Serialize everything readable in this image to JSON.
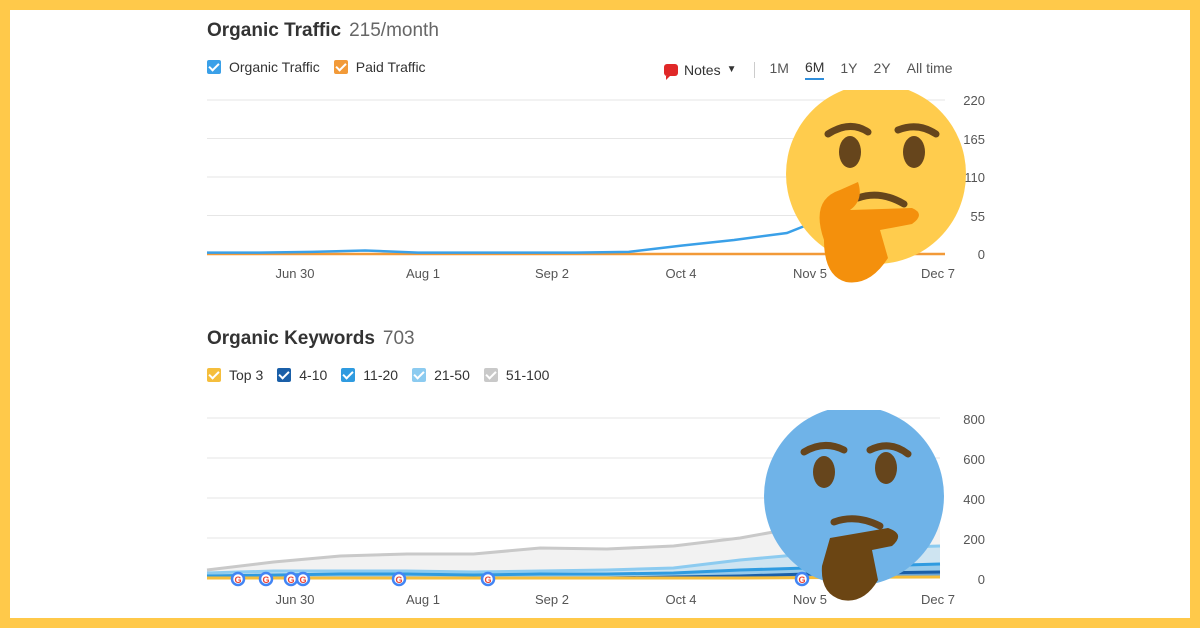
{
  "traffic": {
    "title": "Organic Traffic",
    "value": "215/month",
    "legend": [
      {
        "label": "Organic Traffic",
        "color": "#3aa0e8"
      },
      {
        "label": "Paid Traffic",
        "color": "#f29a38"
      }
    ],
    "notes_label": "Notes",
    "periods": [
      "1M",
      "6M",
      "1Y",
      "2Y",
      "All time"
    ],
    "active_period": "6M",
    "y_ticks": [
      "220",
      "165",
      "110",
      "55",
      "0"
    ],
    "x_ticks": [
      "Jun 30",
      "Aug 1",
      "Sep 2",
      "Oct 4",
      "Nov 5",
      "Dec 7"
    ]
  },
  "keywords": {
    "title": "Organic Keywords",
    "value": "703",
    "legend": [
      {
        "label": "Top 3",
        "color": "#f5be3c"
      },
      {
        "label": "4-10",
        "color": "#1a5fa8"
      },
      {
        "label": "11-20",
        "color": "#2f9be0"
      },
      {
        "label": "21-50",
        "color": "#8ccbf0"
      },
      {
        "label": "51-100",
        "color": "#c9c9c9"
      }
    ],
    "y_ticks": [
      "800",
      "600",
      "400",
      "200",
      "0"
    ],
    "x_ticks": [
      "Jun 30",
      "Aug 1",
      "Sep 2",
      "Oct 4",
      "Nov 5",
      "Dec 7"
    ],
    "google_marker": "G"
  },
  "chart_data": [
    {
      "type": "line",
      "title": "Organic Traffic",
      "ylim": [
        0,
        220
      ],
      "x": [
        "Jun 15",
        "Jun 30",
        "Jul 15",
        "Aug 1",
        "Aug 15",
        "Sep 2",
        "Sep 15",
        "Oct 4",
        "Oct 20",
        "Oct 25",
        "Nov 1",
        "Nov 5",
        "Nov 10",
        "Nov 20",
        "Dec 7"
      ],
      "series": [
        {
          "name": "Organic Traffic",
          "values": [
            2,
            2,
            3,
            5,
            2,
            2,
            2,
            2,
            3,
            12,
            20,
            30,
            60,
            110,
            150
          ]
        },
        {
          "name": "Paid Traffic",
          "values": [
            0,
            0,
            0,
            0,
            0,
            0,
            0,
            0,
            0,
            0,
            0,
            0,
            0,
            0,
            0
          ]
        }
      ]
    },
    {
      "type": "area",
      "title": "Organic Keywords",
      "ylim": [
        0,
        800
      ],
      "x": [
        "Jun 15",
        "Jun 30",
        "Jul 15",
        "Aug 1",
        "Aug 15",
        "Sep 2",
        "Sep 15",
        "Oct 4",
        "Oct 20",
        "Nov 5",
        "Nov 20",
        "Dec 7"
      ],
      "series": [
        {
          "name": "51-100",
          "values": [
            40,
            80,
            110,
            120,
            120,
            150,
            145,
            160,
            200,
            260,
            330,
            380
          ]
        },
        {
          "name": "21-50",
          "values": [
            25,
            35,
            35,
            35,
            30,
            35,
            40,
            50,
            90,
            120,
            150,
            160
          ]
        },
        {
          "name": "11-20",
          "values": [
            10,
            15,
            20,
            20,
            15,
            20,
            20,
            25,
            40,
            50,
            60,
            70
          ]
        },
        {
          "name": "4-10",
          "values": [
            0,
            0,
            0,
            0,
            0,
            0,
            0,
            5,
            10,
            20,
            25,
            30
          ]
        },
        {
          "name": "Top 3",
          "values": [
            0,
            0,
            0,
            0,
            0,
            0,
            0,
            0,
            0,
            2,
            4,
            5
          ]
        }
      ]
    }
  ]
}
